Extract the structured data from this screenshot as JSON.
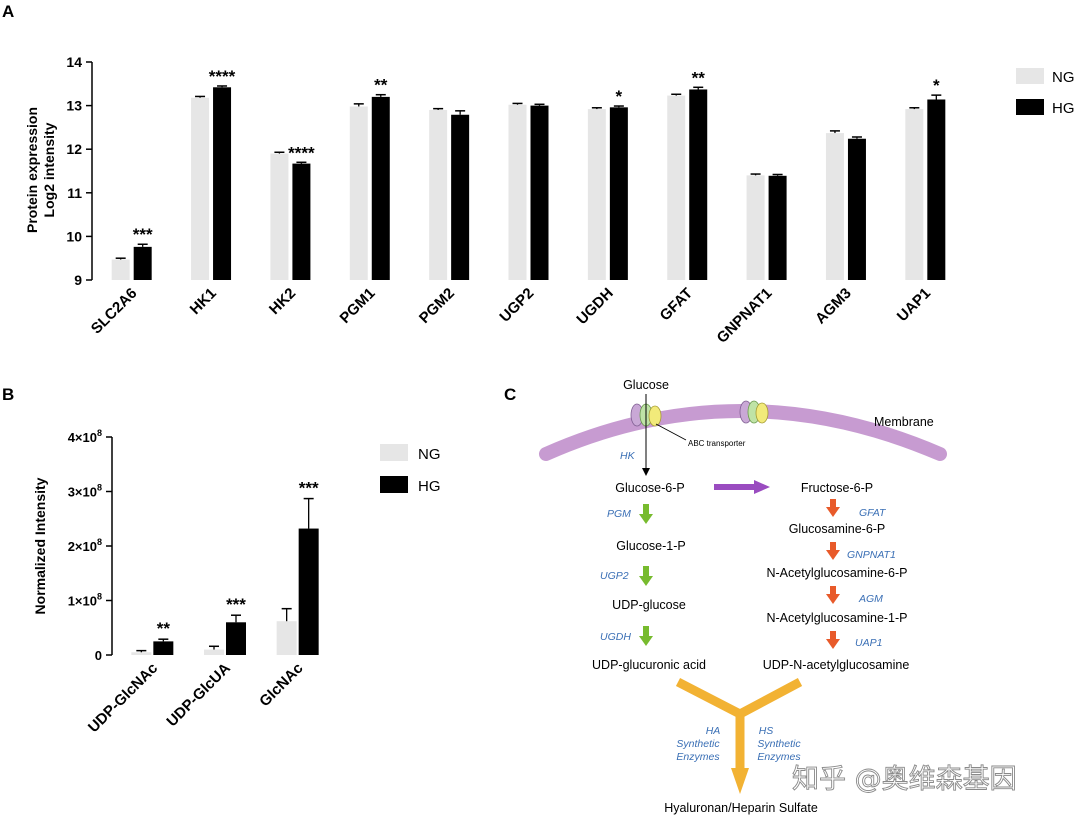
{
  "panels": {
    "a": {
      "label": "A",
      "chart_data": {
        "type": "bar",
        "ylabel": "Protein expression\nLog2 intensity",
        "ylabel_lines": [
          "Protein expression",
          "Log2 intensity"
        ],
        "ylim": [
          9,
          14
        ],
        "yticks": [
          "9",
          "10",
          "11",
          "12",
          "13",
          "14"
        ],
        "categories": [
          "SLC2A6",
          "HK1",
          "HK2",
          "PGM1",
          "PGM2",
          "UGP2",
          "UGDH",
          "GFAT",
          "GNPNAT1",
          "AGM3",
          "UAP1"
        ],
        "series": [
          {
            "name": "NG",
            "color": "#e6e6e6",
            "values": [
              9.47,
              13.18,
              11.9,
              12.98,
              12.9,
              13.02,
              12.92,
              13.23,
              11.4,
              12.37,
              12.92
            ],
            "errors": [
              0.03,
              0.03,
              0.03,
              0.06,
              0.03,
              0.03,
              0.03,
              0.03,
              0.03,
              0.05,
              0.03
            ]
          },
          {
            "name": "HG",
            "color": "#000000",
            "values": [
              9.76,
              13.42,
              11.67,
              13.2,
              12.79,
              13.0,
              12.96,
              13.37,
              11.39,
              12.24,
              13.14
            ],
            "errors": [
              0.06,
              0.03,
              0.03,
              0.05,
              0.09,
              0.03,
              0.03,
              0.05,
              0.03,
              0.04,
              0.1
            ]
          }
        ],
        "significance": [
          "***",
          "****",
          "****",
          "**",
          "",
          "",
          "*",
          "**",
          "",
          "",
          "*"
        ],
        "legend": [
          "NG",
          "HG"
        ]
      }
    },
    "b": {
      "label": "B",
      "chart_data": {
        "type": "bar",
        "ylabel": "Normalized Intensity",
        "ylim": [
          0,
          400000000
        ],
        "yticks": [
          {
            "mant": "0",
            "exp": ""
          },
          {
            "mant": "1×10",
            "exp": "8"
          },
          {
            "mant": "2×10",
            "exp": "8"
          },
          {
            "mant": "3×10",
            "exp": "8"
          },
          {
            "mant": "4×10",
            "exp": "8"
          }
        ],
        "categories": [
          "UDP-GlcNAc",
          "UDP-GlcUA",
          "GlcNAc"
        ],
        "series": [
          {
            "name": "NG",
            "color": "#e6e6e6",
            "values": [
              5000000,
              10000000,
              62000000
            ],
            "errors": [
              3000000,
              6000000,
              23000000
            ]
          },
          {
            "name": "HG",
            "color": "#000000",
            "values": [
              25000000,
              60000000,
              232000000
            ],
            "errors": [
              4000000,
              13000000,
              55000000
            ]
          }
        ],
        "significance": [
          "**",
          "***",
          "***"
        ],
        "legend": [
          "NG",
          "HG"
        ]
      }
    },
    "c": {
      "label": "C",
      "glucose": "Glucose",
      "membrane": "Membrane",
      "transporter": "ABC transporter",
      "hk": "HK",
      "left_pathway": [
        {
          "metabolite": "Glucose-6-P",
          "enzyme": "PGM"
        },
        {
          "metabolite": "Glucose-1-P",
          "enzyme": "UGP2"
        },
        {
          "metabolite": "UDP-glucose",
          "enzyme": "UGDH"
        },
        {
          "metabolite": "UDP-glucuronic acid",
          "enzyme": ""
        }
      ],
      "right_pathway": [
        {
          "metabolite": "Fructose-6-P",
          "enzyme": "GFAT"
        },
        {
          "metabolite": "Glucosamine-6-P",
          "enzyme": "GNPNAT1"
        },
        {
          "metabolite": "N-Acetylglucosamine-6-P",
          "enzyme": "AGM"
        },
        {
          "metabolite": "N-Acetylglucosamine-1-P",
          "enzyme": "UAP1"
        },
        {
          "metabolite": "UDP-N-acetylglucosamine",
          "enzyme": ""
        }
      ],
      "ha_enzymes": [
        "HA",
        "Synthetic",
        "Enzymes"
      ],
      "hs_enzymes": [
        "HS",
        "Synthetic",
        "Enzymes"
      ],
      "product": "Hyaluronan/Heparin Sulfate",
      "colors": {
        "membrane": "#c79bd1",
        "left_arrow": "#77bb2e",
        "right_arrow": "#e85a2a",
        "iso_arrow": "#9a4cc0",
        "y_arrow": "#f2b233",
        "enzyme": "#3a6fb5"
      }
    }
  },
  "watermark": "知乎 @奥维森基因"
}
